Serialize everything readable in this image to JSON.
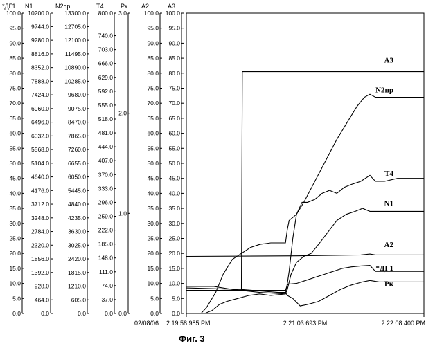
{
  "figure_caption": "Фиг. 3",
  "date_label": "02/08/06",
  "chart_data": {
    "type": "line",
    "time_ticks": [
      "2:19:58.985 PM",
      "2:21:03.693 PM",
      "2:22:08.400 PM"
    ],
    "xlim": [
      0,
      129.415
    ],
    "normalized_range": [
      0,
      100
    ],
    "axes": [
      {
        "name": "*ДГ1",
        "ticks": [
          "0.0",
          "5.0",
          "10.0",
          "15.0",
          "20.0",
          "25.0",
          "30.0",
          "35.0",
          "40.0",
          "45.0",
          "50.0",
          "55.0",
          "60.0",
          "65.0",
          "70.0",
          "75.0",
          "80.0",
          "85.0",
          "90.0",
          "95.0",
          "100.0"
        ]
      },
      {
        "name": "N1",
        "ticks": [
          "0.0",
          "464.0",
          "928.0",
          "1392.0",
          "1856.0",
          "2320.0",
          "2784.0",
          "3248.0",
          "3712.0",
          "4176.0",
          "4640.0",
          "5104.0",
          "5568.0",
          "6032.0",
          "6496.0",
          "6960.0",
          "7424.0",
          "7888.0",
          "8352.0",
          "8816.0",
          "9280.0",
          "9744.0",
          "10200.0"
        ]
      },
      {
        "name": "N2пр",
        "ticks": [
          "0.0",
          "605.0",
          "1210.0",
          "1815.0",
          "2420.0",
          "3025.0",
          "3630.0",
          "4235.0",
          "4840.0",
          "5445.0",
          "6050.0",
          "6655.0",
          "7260.0",
          "7865.0",
          "8470.0",
          "9075.0",
          "9680.0",
          "10285.0",
          "10890.0",
          "11495.0",
          "12100.0",
          "12705.0",
          "13300.0"
        ]
      },
      {
        "name": "T4",
        "ticks": [
          "0.0",
          "37.0",
          "74.0",
          "111.0",
          "148.0",
          "185.0",
          "222.0",
          "259.0",
          "296.0",
          "333.0",
          "370.0",
          "407.0",
          "444.0",
          "481.0",
          "518.0",
          "555.0",
          "592.0",
          "629.0",
          "666.0",
          "703.0",
          "740.0",
          "800.0"
        ]
      },
      {
        "name": "Рк",
        "ticks": [
          "0.0",
          "1.0",
          "2.0",
          "3.0"
        ]
      },
      {
        "name": "A2",
        "ticks": [
          "0.0",
          "5.0",
          "10.0",
          "15.0",
          "20.0",
          "25.0",
          "30.0",
          "35.0",
          "40.0",
          "45.0",
          "50.0",
          "55.0",
          "60.0",
          "65.0",
          "70.0",
          "75.0",
          "80.0",
          "85.0",
          "90.0",
          "95.0",
          "100.0"
        ]
      },
      {
        "name": "A3",
        "ticks": [
          "0.0",
          "5.0",
          "10.0",
          "15.0",
          "20.0",
          "25.0",
          "30.0",
          "35.0",
          "40.0",
          "45.0",
          "50.0",
          "55.0",
          "60.0",
          "65.0",
          "70.0",
          "75.0",
          "80.0",
          "85.0",
          "90.0",
          "95.0",
          "100.0"
        ]
      }
    ],
    "series": [
      {
        "name": "A3",
        "points": [
          [
            0,
            7.5
          ],
          [
            30,
            7.5
          ],
          [
            30.5,
            80.5
          ],
          [
            129.4,
            80.5
          ]
        ]
      },
      {
        "name": "N2пр",
        "points": [
          [
            0,
            0
          ],
          [
            8,
            0
          ],
          [
            11,
            2
          ],
          [
            16,
            7
          ],
          [
            20,
            13
          ],
          [
            25,
            18
          ],
          [
            30,
            20
          ],
          [
            35,
            22
          ],
          [
            40,
            23
          ],
          [
            46,
            23.5
          ],
          [
            54,
            23.5
          ],
          [
            55,
            28
          ],
          [
            56,
            31
          ],
          [
            60,
            33
          ],
          [
            64,
            37
          ],
          [
            70,
            44
          ],
          [
            76,
            51
          ],
          [
            82,
            58
          ],
          [
            88,
            64
          ],
          [
            93,
            69
          ],
          [
            97,
            72
          ],
          [
            100,
            73
          ],
          [
            103,
            72
          ],
          [
            110,
            72
          ],
          [
            129.4,
            72
          ]
        ]
      },
      {
        "name": "T4",
        "points": [
          [
            0,
            9
          ],
          [
            15,
            9
          ],
          [
            25,
            8
          ],
          [
            40,
            7
          ],
          [
            54,
            6.5
          ],
          [
            55,
            10
          ],
          [
            56,
            14
          ],
          [
            58,
            25
          ],
          [
            60,
            33
          ],
          [
            63,
            37
          ],
          [
            66,
            37
          ],
          [
            70,
            38
          ],
          [
            74,
            40
          ],
          [
            78,
            41
          ],
          [
            82,
            40
          ],
          [
            86,
            42
          ],
          [
            90,
            43
          ],
          [
            95,
            44
          ],
          [
            100,
            46
          ],
          [
            103,
            44
          ],
          [
            108,
            44
          ],
          [
            115,
            45
          ],
          [
            129.4,
            45
          ]
        ]
      },
      {
        "name": "N1",
        "points": [
          [
            0,
            0
          ],
          [
            10,
            0
          ],
          [
            14,
            1
          ],
          [
            18,
            3
          ],
          [
            22,
            4
          ],
          [
            28,
            5
          ],
          [
            34,
            6
          ],
          [
            40,
            6.5
          ],
          [
            46,
            6
          ],
          [
            54,
            6.5
          ],
          [
            55,
            8
          ],
          [
            57,
            13
          ],
          [
            60,
            17
          ],
          [
            64,
            19
          ],
          [
            68,
            20
          ],
          [
            72,
            23
          ],
          [
            77,
            27
          ],
          [
            82,
            31
          ],
          [
            87,
            33
          ],
          [
            92,
            34
          ],
          [
            96,
            35
          ],
          [
            100,
            34
          ],
          [
            110,
            34
          ],
          [
            129.4,
            34
          ]
        ]
      },
      {
        "name": "A2",
        "points": [
          [
            0,
            19
          ],
          [
            60,
            19.2
          ],
          [
            95,
            19.5
          ],
          [
            100,
            19.8
          ],
          [
            103,
            19.5
          ],
          [
            129.4,
            19.5
          ]
        ]
      },
      {
        "name": "*ДГ1",
        "points": [
          [
            0,
            7.7
          ],
          [
            54,
            7.7
          ],
          [
            55,
            9.5
          ],
          [
            56,
            9.8
          ],
          [
            60,
            10
          ],
          [
            65,
            11
          ],
          [
            70,
            12
          ],
          [
            75,
            13
          ],
          [
            80,
            14
          ],
          [
            85,
            15
          ],
          [
            90,
            15.5
          ],
          [
            95,
            15.8
          ],
          [
            100,
            16
          ],
          [
            103,
            14
          ],
          [
            110,
            14
          ],
          [
            129.4,
            14
          ]
        ]
      },
      {
        "name": "Рк",
        "points": [
          [
            0,
            8.5
          ],
          [
            30,
            8
          ],
          [
            40,
            7.5
          ],
          [
            50,
            7
          ],
          [
            54,
            7
          ],
          [
            55,
            6
          ],
          [
            58,
            5
          ],
          [
            62,
            2.5
          ],
          [
            66,
            3
          ],
          [
            72,
            4
          ],
          [
            78,
            6
          ],
          [
            84,
            8
          ],
          [
            90,
            9.5
          ],
          [
            96,
            10.5
          ],
          [
            100,
            11
          ],
          [
            105,
            10.5
          ],
          [
            110,
            10.5
          ],
          [
            129.4,
            10.5
          ]
        ]
      }
    ],
    "right_labels": [
      {
        "name": "A3",
        "value": 84.5
      },
      {
        "name": "N2пр",
        "value": 74.5
      },
      {
        "name": "T4",
        "value": 46.8
      },
      {
        "name": "N1",
        "value": 36.8
      },
      {
        "name": "A2",
        "value": 23.0
      },
      {
        "name": "*ДГ1",
        "value": 15.2
      },
      {
        "name": "Рк",
        "value": 10.0
      }
    ]
  }
}
